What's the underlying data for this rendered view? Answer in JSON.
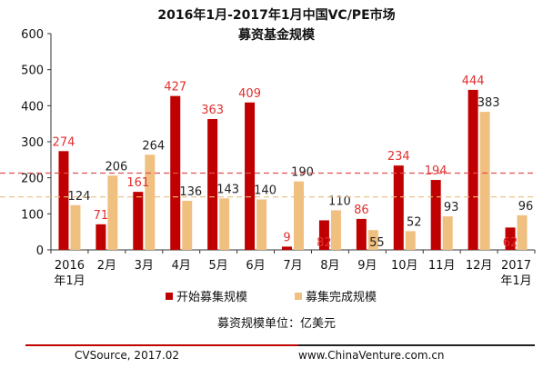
{
  "title": {
    "line1": "2016年1月-2017年1月中国VC/PE市场",
    "line2": "募资基金规模"
  },
  "colors": {
    "series1": "#c00000",
    "series2": "#f0c080",
    "series1_label": "#e03030",
    "series2_label": "#222222",
    "ref1": "#e05050",
    "ref2": "#e8c080"
  },
  "chart_data": {
    "type": "bar",
    "categories": [
      [
        "2016",
        "年1月"
      ],
      [
        "2月"
      ],
      [
        "3月"
      ],
      [
        "4月"
      ],
      [
        "5月"
      ],
      [
        "6月"
      ],
      [
        "7月"
      ],
      [
        "8月"
      ],
      [
        "9月"
      ],
      [
        "10月"
      ],
      [
        "11月"
      ],
      [
        "12月"
      ],
      [
        "2017",
        "年1月"
      ]
    ],
    "series": [
      {
        "name": "开始募集规模",
        "values": [
          274,
          71,
          161,
          427,
          363,
          409,
          9,
          82,
          86,
          234,
          194,
          444,
          62
        ]
      },
      {
        "name": "募集完成规模",
        "values": [
          124,
          206,
          264,
          136,
          143,
          140,
          190,
          110,
          55,
          52,
          93,
          383,
          96
        ]
      }
    ],
    "yticks": [
      0,
      100,
      200,
      300,
      400,
      500,
      600
    ],
    "ylim": [
      0,
      600
    ],
    "reference_lines": [
      {
        "series": "开始募集规模",
        "value": 213
      },
      {
        "series": "募集完成规模",
        "value": 147
      }
    ],
    "legend_position": "bottom",
    "grid": false
  },
  "unit_note": "募资规模单位：亿美元",
  "footer": {
    "source": "CVSource, 2017.02",
    "site": "www.ChinaVenture.com.cn"
  }
}
